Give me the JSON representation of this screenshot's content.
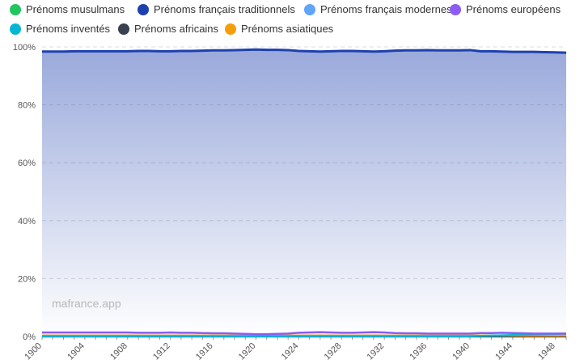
{
  "chart_data": {
    "type": "area",
    "title": "",
    "xlabel": "",
    "ylabel": "",
    "x_range": [
      1900,
      1949
    ],
    "ylim": [
      0,
      100
    ],
    "y_ticks": [
      0,
      20,
      40,
      60,
      80,
      100
    ],
    "y_tick_labels": [
      "0%",
      "20%",
      "40%",
      "60%",
      "80%",
      "100%"
    ],
    "x_ticks": [
      1900,
      1904,
      1908,
      1912,
      1916,
      1920,
      1924,
      1928,
      1932,
      1936,
      1940,
      1944,
      1948
    ],
    "x_tick_labels": [
      "1900",
      "1904",
      "1908",
      "1912",
      "1916",
      "1920",
      "1924",
      "1928",
      "1932",
      "1936",
      "1940",
      "1944",
      "1948"
    ],
    "grid": true,
    "legend_position": "top-left",
    "watermark": "mafrance.app",
    "x": [
      1900,
      1901,
      1902,
      1903,
      1904,
      1905,
      1906,
      1907,
      1908,
      1909,
      1910,
      1911,
      1912,
      1913,
      1914,
      1915,
      1916,
      1917,
      1918,
      1919,
      1920,
      1921,
      1922,
      1923,
      1924,
      1925,
      1926,
      1927,
      1928,
      1929,
      1930,
      1931,
      1932,
      1933,
      1934,
      1935,
      1936,
      1937,
      1938,
      1939,
      1940,
      1941,
      1942,
      1943,
      1944,
      1945,
      1946,
      1947,
      1948,
      1949
    ],
    "series": [
      {
        "name": "Prénoms musulmans",
        "color": "#22c55e",
        "values": [
          0.05,
          0.05,
          0.05,
          0.05,
          0.05,
          0.05,
          0.05,
          0.05,
          0.05,
          0.05,
          0.05,
          0.05,
          0.05,
          0.05,
          0.05,
          0.05,
          0.05,
          0.05,
          0.05,
          0.05,
          0.05,
          0.05,
          0.05,
          0.05,
          0.05,
          0.05,
          0.05,
          0.05,
          0.05,
          0.05,
          0.05,
          0.05,
          0.05,
          0.05,
          0.05,
          0.05,
          0.05,
          0.05,
          0.05,
          0.05,
          0.05,
          0.05,
          0.05,
          0.05,
          0.05,
          0.05,
          0.05,
          0.05,
          0.05,
          0.05
        ]
      },
      {
        "name": "Prénoms français traditionnels",
        "color": "#1e40af",
        "values": [
          98.4,
          98.4,
          98.4,
          98.5,
          98.5,
          98.5,
          98.5,
          98.5,
          98.5,
          98.6,
          98.6,
          98.5,
          98.5,
          98.6,
          98.6,
          98.7,
          98.8,
          98.8,
          98.9,
          99.0,
          99.1,
          99.0,
          99.0,
          98.9,
          98.6,
          98.5,
          98.4,
          98.5,
          98.6,
          98.6,
          98.5,
          98.4,
          98.5,
          98.7,
          98.8,
          98.8,
          98.9,
          98.8,
          98.8,
          98.8,
          98.9,
          98.5,
          98.5,
          98.4,
          98.3,
          98.3,
          98.3,
          98.2,
          98.1,
          98.0
        ]
      },
      {
        "name": "Prénoms français modernes",
        "color": "#60a5fa",
        "values": [
          0.1,
          0.1,
          0.1,
          0.1,
          0.1,
          0.1,
          0.1,
          0.1,
          0.1,
          0.1,
          0.1,
          0.1,
          0.1,
          0.1,
          0.1,
          0.1,
          0.1,
          0.1,
          0.1,
          0.1,
          0.1,
          0.1,
          0.1,
          0.1,
          0.1,
          0.1,
          0.1,
          0.1,
          0.1,
          0.1,
          0.1,
          0.1,
          0.1,
          0.1,
          0.1,
          0.1,
          0.1,
          0.1,
          0.1,
          0.1,
          0.1,
          0.1,
          0.1,
          0.1,
          0.1,
          0.1,
          0.1,
          0.1,
          0.1,
          0.1
        ]
      },
      {
        "name": "Prénoms européens",
        "color": "#8b5cf6",
        "values": [
          1.4,
          1.4,
          1.4,
          1.4,
          1.4,
          1.4,
          1.4,
          1.4,
          1.4,
          1.3,
          1.3,
          1.3,
          1.4,
          1.3,
          1.3,
          1.2,
          1.1,
          1.1,
          1.0,
          0.9,
          0.8,
          0.8,
          0.9,
          1.0,
          1.3,
          1.4,
          1.5,
          1.4,
          1.3,
          1.3,
          1.4,
          1.5,
          1.4,
          1.2,
          1.1,
          1.1,
          1.0,
          1.0,
          1.0,
          1.0,
          1.0,
          1.2,
          1.2,
          1.3,
          1.2,
          1.1,
          1.0,
          1.0,
          1.0,
          1.0
        ]
      },
      {
        "name": "Prénoms inventés",
        "color": "#06b6d4",
        "values": [
          0.1,
          0.1,
          0.1,
          0.1,
          0.1,
          0.1,
          0.1,
          0.1,
          0.1,
          0.1,
          0.1,
          0.1,
          0.1,
          0.1,
          0.1,
          0.1,
          0.1,
          0.1,
          0.1,
          0.1,
          0.1,
          0.1,
          0.1,
          0.1,
          0.1,
          0.1,
          0.1,
          0.1,
          0.1,
          0.1,
          0.1,
          0.1,
          0.1,
          0.1,
          0.1,
          0.1,
          0.1,
          0.1,
          0.1,
          0.1,
          0.1,
          0.2,
          0.3,
          0.4,
          0.5,
          0.6,
          0.7,
          0.8,
          0.9,
          1.0
        ]
      },
      {
        "name": "Prénoms africains",
        "color": "#374151",
        "values": [
          0.02,
          0.02,
          0.02,
          0.02,
          0.02,
          0.02,
          0.02,
          0.02,
          0.02,
          0.02,
          0.02,
          0.02,
          0.02,
          0.02,
          0.02,
          0.02,
          0.02,
          0.02,
          0.02,
          0.02,
          0.02,
          0.02,
          0.02,
          0.02,
          0.02,
          0.02,
          0.02,
          0.02,
          0.02,
          0.02,
          0.02,
          0.02,
          0.02,
          0.02,
          0.02,
          0.02,
          0.02,
          0.02,
          0.02,
          0.02,
          0.02,
          0.02,
          0.02,
          0.02,
          0.02,
          0.02,
          0.02,
          0.02,
          0.02,
          0.02
        ]
      },
      {
        "name": "Prénoms asiatiques",
        "color": "#f59e0b",
        "values": [
          0.3,
          0.3,
          0.3,
          0.3,
          0.3,
          0.3,
          0.3,
          0.3,
          0.3,
          0.3,
          0.3,
          0.3,
          0.3,
          0.3,
          0.3,
          0.3,
          0.3,
          0.3,
          0.3,
          0.3,
          0.3,
          0.3,
          0.3,
          0.3,
          0.3,
          0.3,
          0.3,
          0.3,
          0.3,
          0.3,
          0.3,
          0.3,
          0.3,
          0.3,
          0.3,
          0.3,
          0.3,
          0.3,
          0.3,
          0.3,
          0.3,
          0.3,
          0.3,
          0.3,
          0.3,
          0.3,
          0.3,
          0.3,
          0.3,
          0.3
        ]
      }
    ]
  }
}
